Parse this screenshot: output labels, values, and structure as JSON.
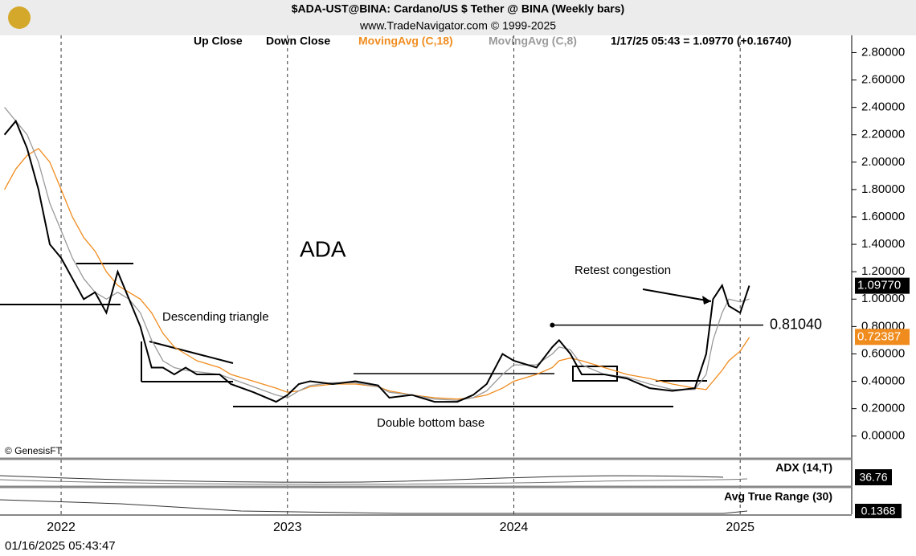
{
  "chart_data": {
    "type": "line",
    "title": "$ADA-UST@BINA:  Cardano/US $ Tether @ BINA  (Weekly bars)",
    "subtitle": "www.TradeNavigator.com © 1999-2025",
    "legend_texts": [
      "Up Close",
      "Down Close"
    ],
    "quote": "1/17/25 05:43 = 1.09770 (+0.16740)",
    "x": [
      2021.75,
      2021.8,
      2021.85,
      2021.9,
      2021.95,
      2022.0,
      2022.05,
      2022.1,
      2022.15,
      2022.2,
      2022.25,
      2022.3,
      2022.35,
      2022.4,
      2022.45,
      2022.5,
      2022.55,
      2022.6,
      2022.7,
      2022.75,
      2022.85,
      2022.95,
      2023.0,
      2023.05,
      2023.1,
      2023.2,
      2023.3,
      2023.4,
      2023.45,
      2023.55,
      2023.65,
      2023.75,
      2023.82,
      2023.88,
      2023.95,
      2024.0,
      2024.1,
      2024.17,
      2024.2,
      2024.25,
      2024.3,
      2024.4,
      2024.5,
      2024.6,
      2024.7,
      2024.8,
      2024.85,
      2024.88,
      2024.92,
      2024.95,
      2025.0,
      2025.04
    ],
    "series": [
      {
        "name": "Close",
        "color": "#000000",
        "values": [
          2.2,
          2.3,
          2.1,
          1.8,
          1.4,
          1.3,
          1.15,
          1.0,
          1.05,
          0.9,
          1.2,
          1.0,
          0.8,
          0.5,
          0.5,
          0.45,
          0.5,
          0.45,
          0.45,
          0.38,
          0.32,
          0.25,
          0.3,
          0.38,
          0.4,
          0.38,
          0.4,
          0.37,
          0.28,
          0.3,
          0.25,
          0.25,
          0.3,
          0.38,
          0.6,
          0.55,
          0.5,
          0.65,
          0.7,
          0.6,
          0.45,
          0.45,
          0.42,
          0.35,
          0.33,
          0.35,
          0.6,
          1.0,
          1.1,
          0.95,
          0.9,
          1.0977
        ]
      },
      {
        "name": "MovingAvg (C,18)",
        "color": "#f08c1e",
        "values": [
          1.8,
          1.95,
          2.05,
          2.1,
          2.0,
          1.8,
          1.6,
          1.45,
          1.35,
          1.2,
          1.1,
          1.05,
          1.0,
          0.9,
          0.75,
          0.65,
          0.6,
          0.55,
          0.5,
          0.45,
          0.4,
          0.35,
          0.32,
          0.33,
          0.36,
          0.38,
          0.38,
          0.36,
          0.33,
          0.3,
          0.28,
          0.27,
          0.28,
          0.3,
          0.35,
          0.4,
          0.45,
          0.5,
          0.55,
          0.57,
          0.55,
          0.5,
          0.45,
          0.42,
          0.38,
          0.35,
          0.34,
          0.4,
          0.48,
          0.55,
          0.62,
          0.72
        ]
      },
      {
        "name": "MovingAvg (C,8)",
        "color": "#9a9a9a",
        "values": [
          2.4,
          2.3,
          2.2,
          2.0,
          1.7,
          1.5,
          1.3,
          1.15,
          1.05,
          1.0,
          1.05,
          1.0,
          0.9,
          0.7,
          0.55,
          0.5,
          0.48,
          0.47,
          0.45,
          0.42,
          0.36,
          0.3,
          0.28,
          0.33,
          0.37,
          0.39,
          0.39,
          0.36,
          0.32,
          0.3,
          0.27,
          0.26,
          0.28,
          0.33,
          0.45,
          0.52,
          0.52,
          0.6,
          0.65,
          0.63,
          0.52,
          0.45,
          0.43,
          0.38,
          0.34,
          0.34,
          0.45,
          0.7,
          0.9,
          1.0,
          0.98,
          1.0
        ]
      }
    ],
    "xlim": [
      2021.73,
      2025.475
    ],
    "xticks": [
      2022,
      2023,
      2024,
      2025
    ],
    "ylim": [
      -0.16,
      2.92
    ],
    "yticks": [
      {
        "value": 0,
        "label": "0.00000"
      },
      {
        "value": 0.2,
        "label": "0.20000"
      },
      {
        "value": 0.4,
        "label": "0.40000"
      },
      {
        "value": 0.6,
        "label": "0.60000"
      },
      {
        "value": 0.8,
        "label": "0.80000"
      },
      {
        "value": 1.0,
        "label": "1.00000"
      },
      {
        "value": 1.2,
        "label": "1.20000"
      },
      {
        "value": 1.4,
        "label": "1.40000"
      },
      {
        "value": 1.6,
        "label": "1.60000"
      },
      {
        "value": 1.8,
        "label": "1.80000"
      },
      {
        "value": 2.0,
        "label": "2.00000"
      },
      {
        "value": 2.2,
        "label": "2.20000"
      },
      {
        "value": 2.4,
        "label": "2.40000"
      },
      {
        "value": 2.6,
        "label": "2.60000"
      },
      {
        "value": 2.8,
        "label": "2.80000"
      }
    ],
    "grid": true,
    "last_close": {
      "value": 1.0977,
      "label": "1.09770"
    },
    "ma18_last": {
      "value": 0.72387,
      "label": "0.72387"
    },
    "resistance": {
      "value": 0.8104,
      "label": "0.81040"
    },
    "annotations": [
      "ADA",
      "Descending triangle",
      "Retest congestion",
      "Double bottom base",
      "© GenesisFT"
    ],
    "adx": {
      "label": "ADX (14,T)",
      "value": 36.76
    },
    "atr": {
      "label": "Avg True Range (30)",
      "value": 0.1368
    },
    "timestamp": "01/16/2025 05:43:47"
  }
}
